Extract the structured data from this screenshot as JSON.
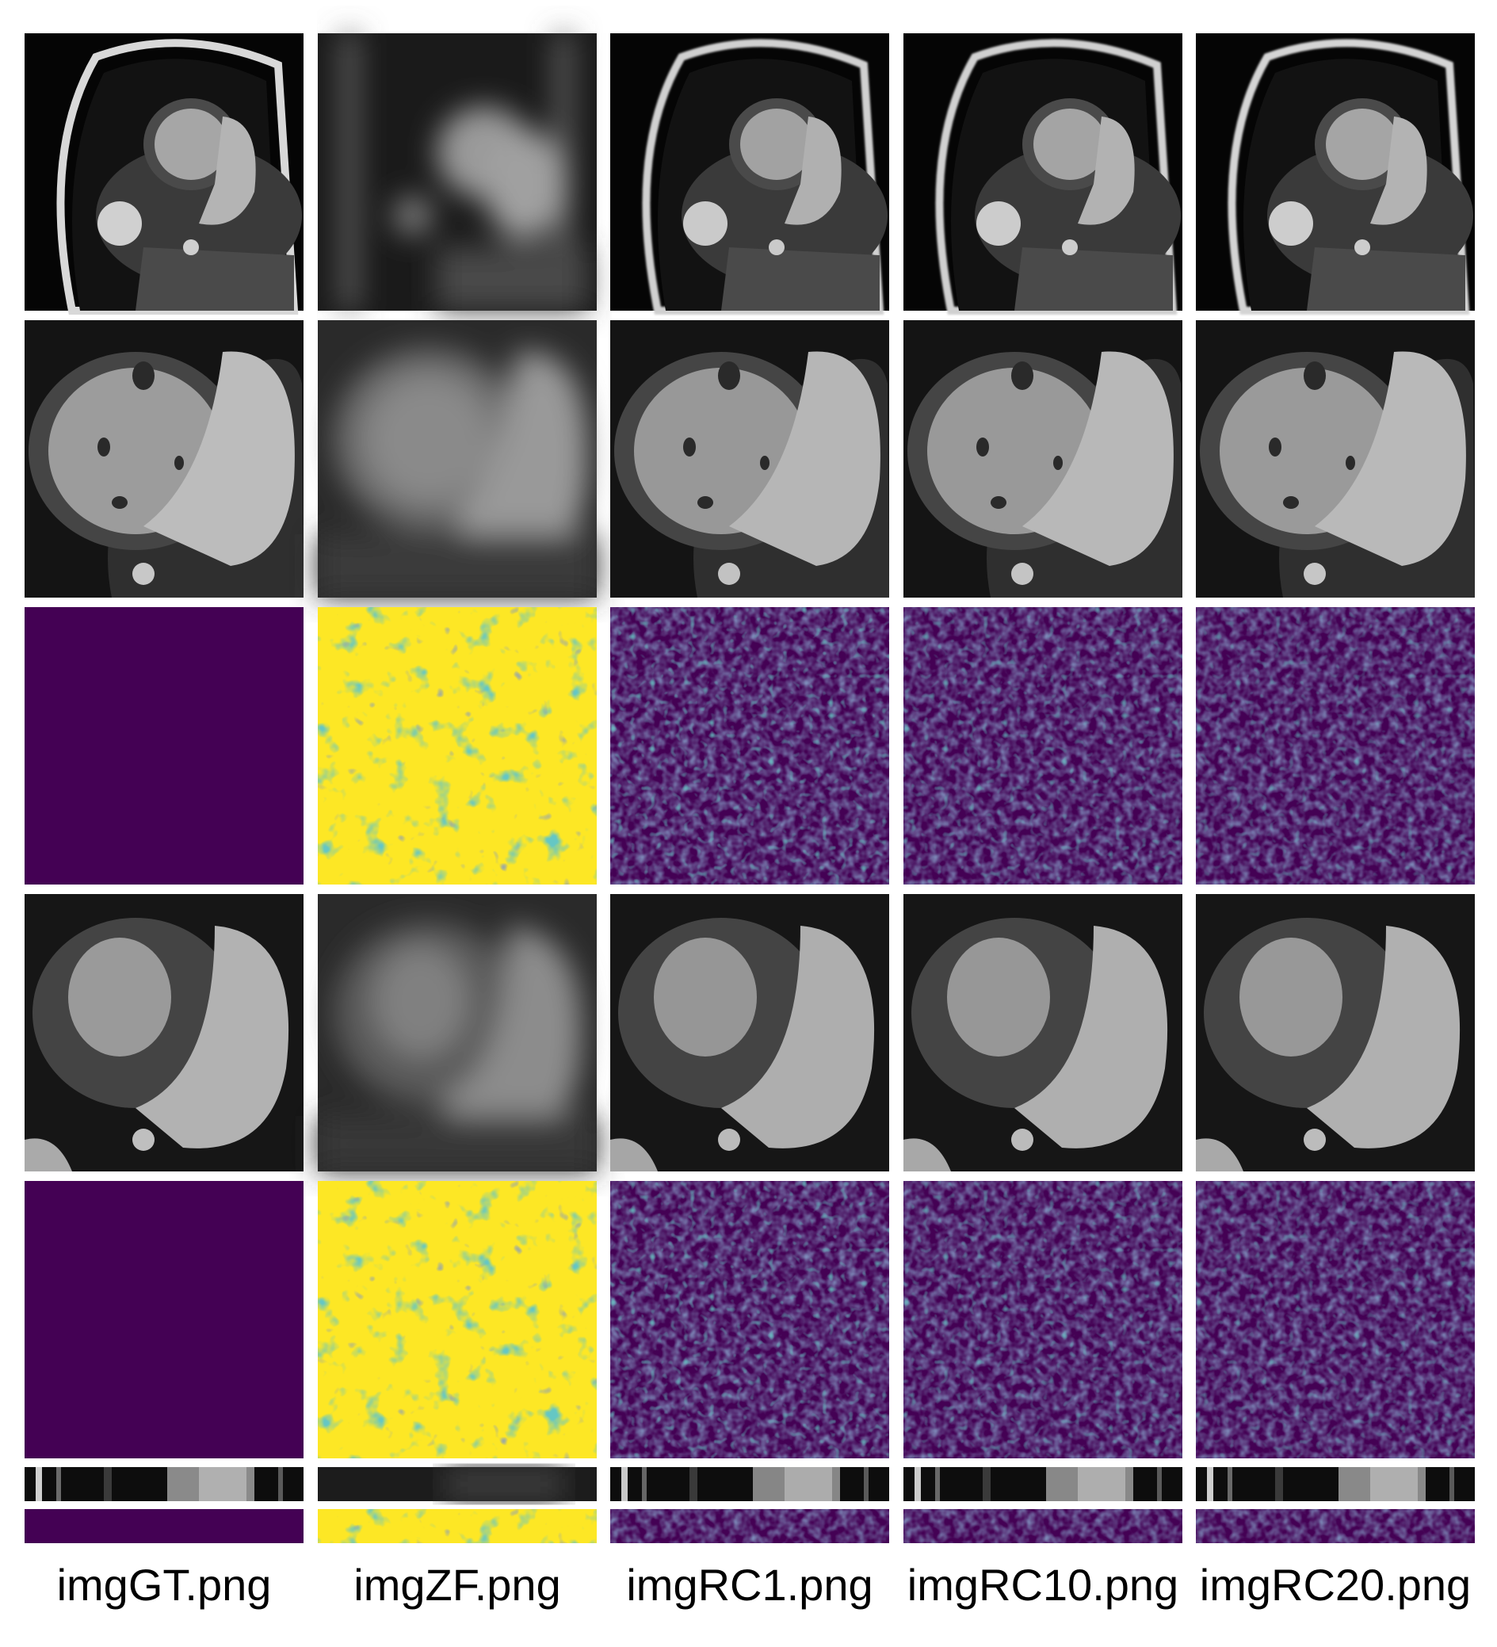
{
  "columns": [
    {
      "label": "imgGT.png"
    },
    {
      "label": "imgZF.png"
    },
    {
      "label": "imgRC1.png"
    },
    {
      "label": "imgRC10.png"
    },
    {
      "label": "imgRC20.png"
    }
  ],
  "rows": [
    {
      "kind": "mri-full-view",
      "type": "grayscale"
    },
    {
      "kind": "mri-crop-frame-a",
      "type": "grayscale"
    },
    {
      "kind": "error-map-frame-a",
      "type": "error"
    },
    {
      "kind": "mri-crop-frame-b",
      "type": "grayscale"
    },
    {
      "kind": "error-map-frame-b",
      "type": "error"
    },
    {
      "kind": "temporal-profile",
      "type": "grayscale-strip"
    },
    {
      "kind": "temporal-error-profile",
      "type": "error-strip"
    }
  ],
  "colors": {
    "background": "#ffffff",
    "error_zero": "#440154",
    "error_low": "#3b528b",
    "error_mid": "#21918c",
    "error_high": "#5ec962",
    "error_max": "#fde725",
    "mri_dark": "#0a0a0a",
    "mri_tissue": "#5a5a5a",
    "mri_blood": "#c8c8c8"
  }
}
